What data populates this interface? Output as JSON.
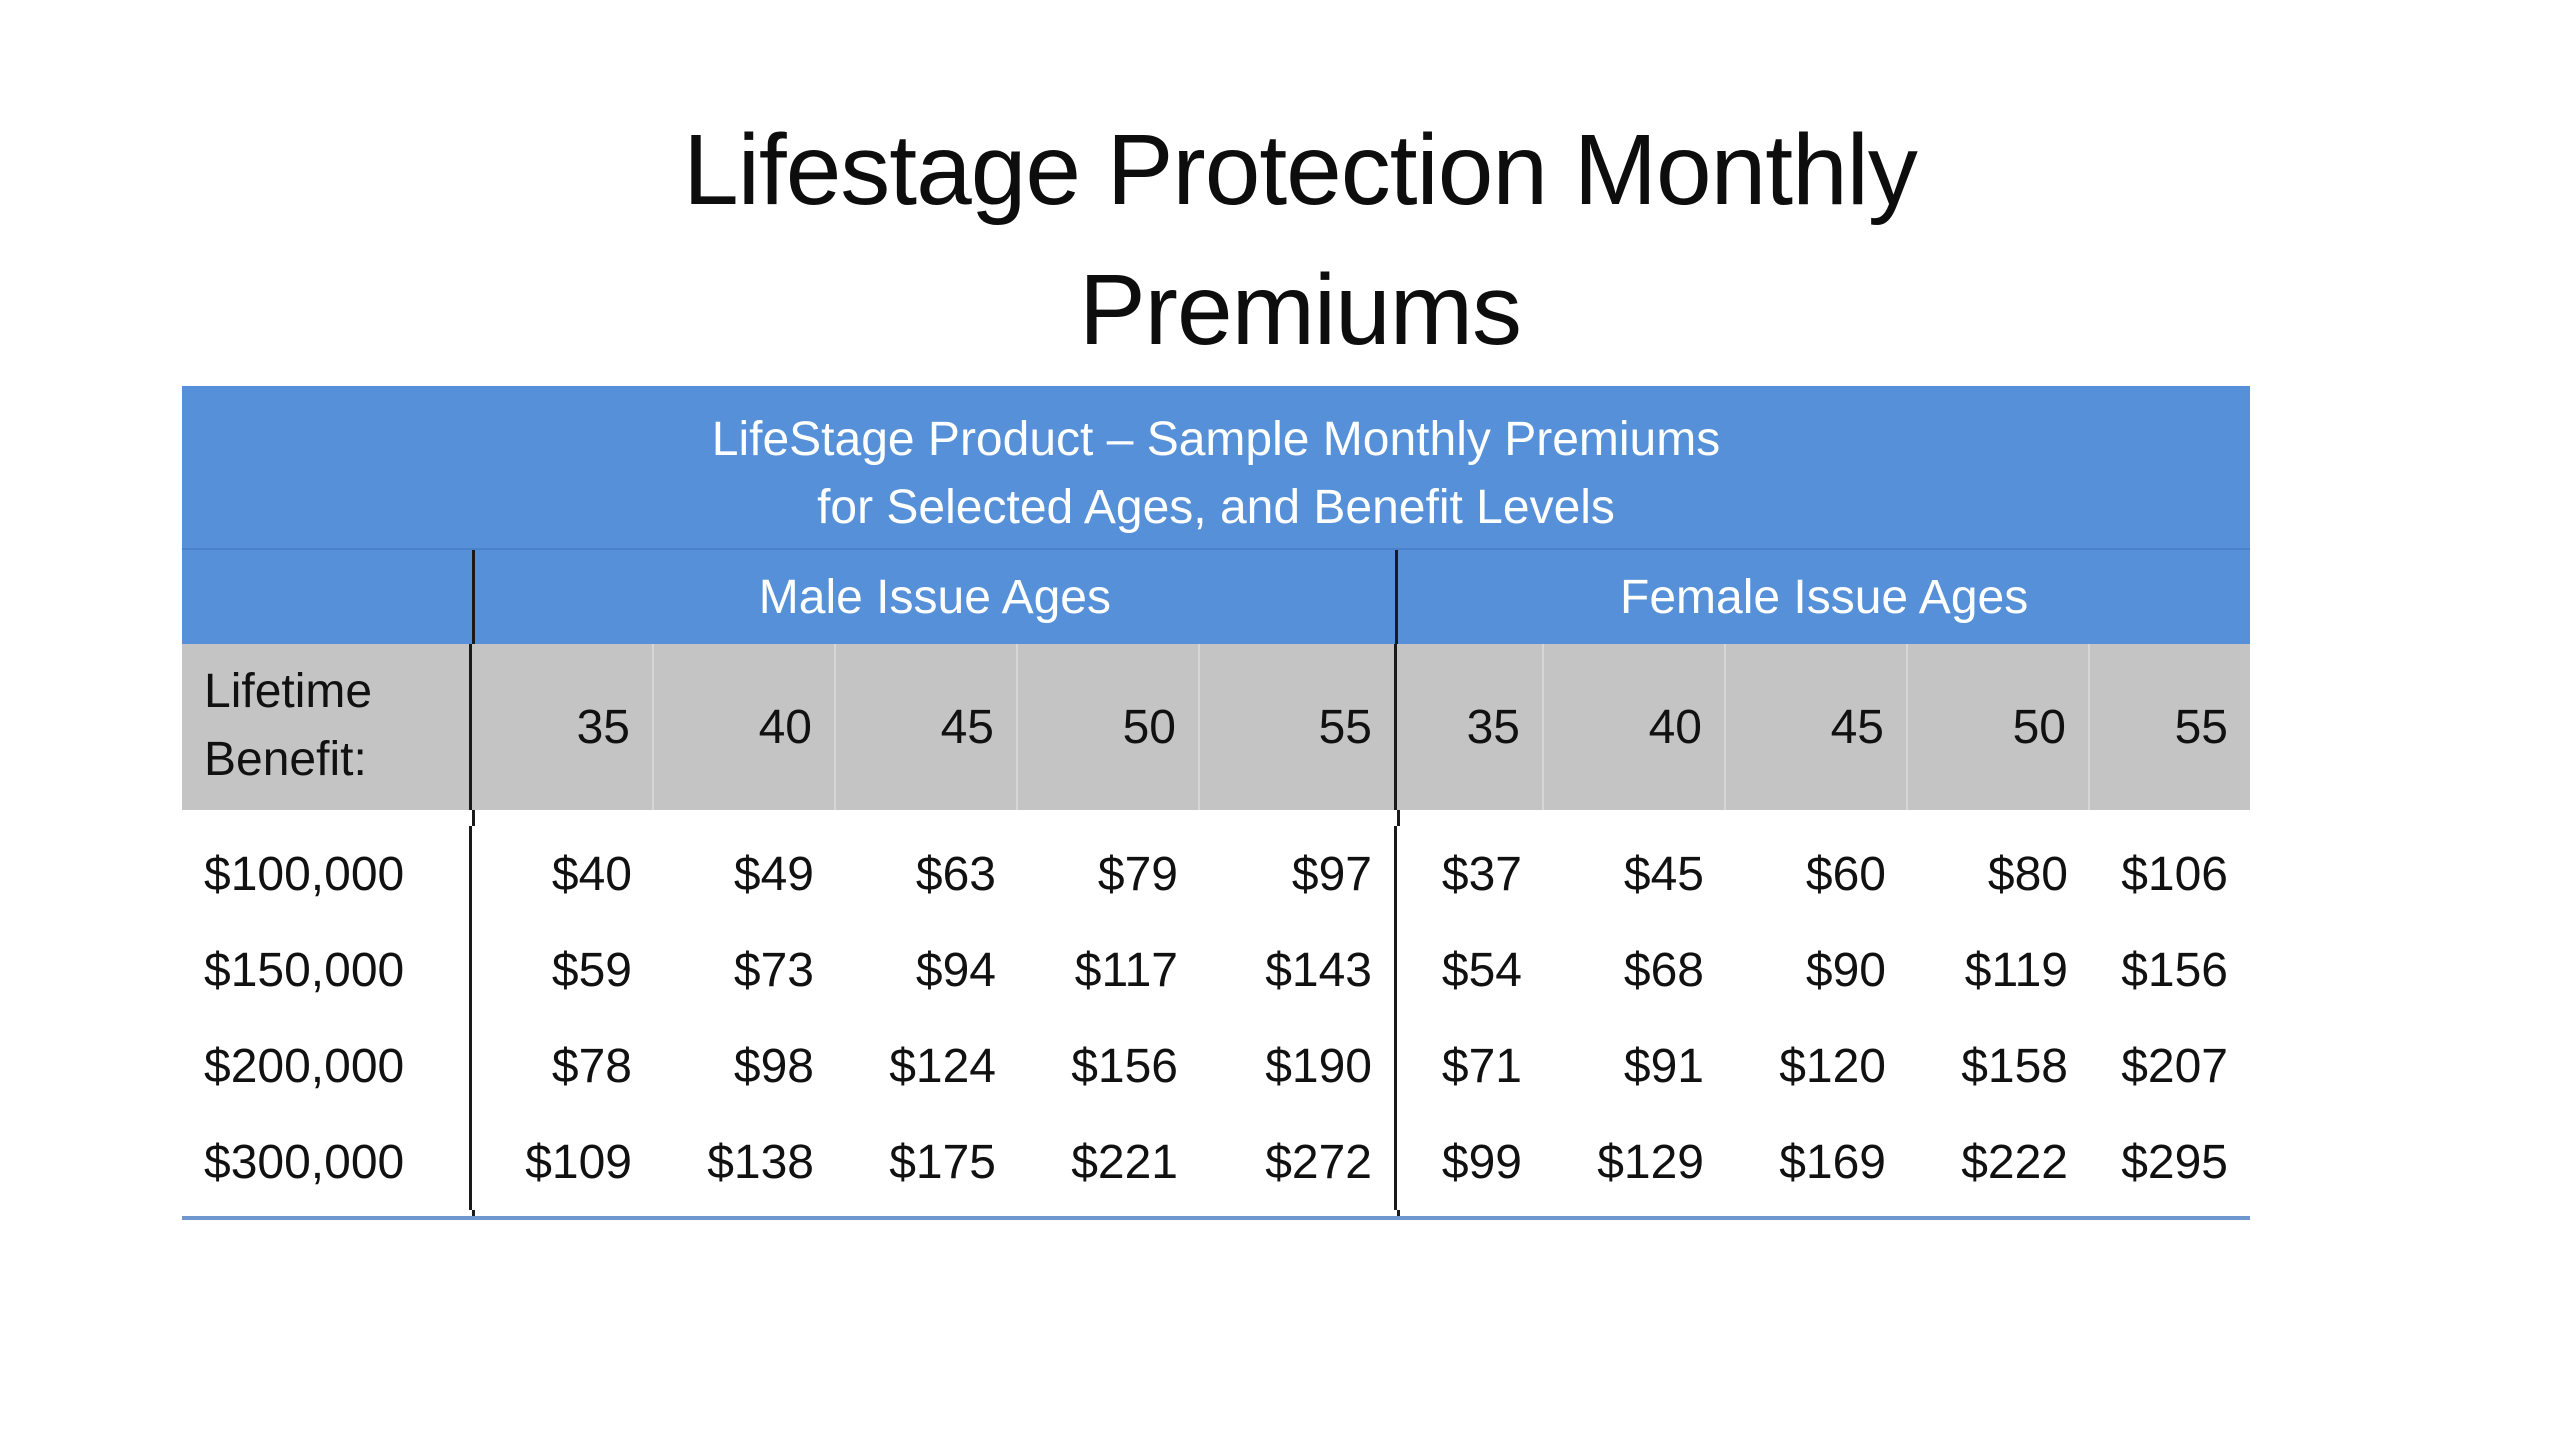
{
  "slide": {
    "title_line1": "Lifestage Protection Monthly",
    "title_line2": "Premiums"
  },
  "table": {
    "banner_line1": "LifeStage Product – Sample Monthly Premiums",
    "banner_line2": "for Selected Ages, and Benefit Levels",
    "male_group": "Male Issue Ages",
    "female_group": "Female Issue Ages",
    "benefit_label_line1": "Lifetime",
    "benefit_label_line2": "Benefit:",
    "male_ages": [
      "35",
      "40",
      "45",
      "50",
      "55"
    ],
    "female_ages": [
      "35",
      "40",
      "45",
      "50",
      "55"
    ],
    "rows": [
      {
        "benefit": "$100,000",
        "male": [
          "$40",
          "$49",
          "$63",
          "$79",
          "$97"
        ],
        "female": [
          "$37",
          "$45",
          "$60",
          "$80",
          "$106"
        ]
      },
      {
        "benefit": "$150,000",
        "male": [
          "$59",
          "$73",
          "$94",
          "$117",
          "$143"
        ],
        "female": [
          "$54",
          "$68",
          "$90",
          "$119",
          "$156"
        ]
      },
      {
        "benefit": "$200,000",
        "male": [
          "$78",
          "$98",
          "$124",
          "$156",
          "$190"
        ],
        "female": [
          "$71",
          "$91",
          "$120",
          "$158",
          "$207"
        ]
      },
      {
        "benefit": "$300,000",
        "male": [
          "$109",
          "$138",
          "$175",
          "$221",
          "$272"
        ],
        "female": [
          "$99",
          "$129",
          "$169",
          "$222",
          "$295"
        ]
      }
    ]
  },
  "colors": {
    "header_blue": "#5590d8",
    "age_row_gray": "#c4c4c4",
    "bottom_rule": "#6f96cf"
  }
}
